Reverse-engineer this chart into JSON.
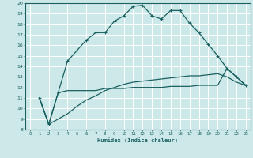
{
  "xlabel": "Humidex (Indice chaleur)",
  "xlim": [
    -0.5,
    23.5
  ],
  "ylim": [
    8,
    20
  ],
  "xticks": [
    0,
    1,
    2,
    3,
    4,
    5,
    6,
    7,
    8,
    9,
    10,
    11,
    12,
    13,
    14,
    15,
    16,
    17,
    18,
    19,
    20,
    21,
    22,
    23
  ],
  "yticks": [
    8,
    9,
    10,
    11,
    12,
    13,
    14,
    15,
    16,
    17,
    18,
    19,
    20
  ],
  "background_color": "#cce8e8",
  "grid_color": "#ffffff",
  "line_color": "#1a6060",
  "lines": [
    {
      "x": [
        1,
        2,
        3,
        4,
        5,
        6,
        7,
        8,
        9,
        10,
        11,
        12,
        13,
        14,
        15,
        16,
        17,
        18,
        19,
        20,
        21,
        22,
        23
      ],
      "y": [
        11.0,
        8.5,
        11.5,
        14.5,
        15.5,
        16.5,
        17.2,
        17.2,
        18.3,
        18.8,
        19.7,
        19.8,
        18.8,
        18.5,
        19.3,
        19.3,
        18.1,
        17.2,
        16.1,
        15.0,
        13.8,
        13.0,
        12.2
      ],
      "marker": true
    },
    {
      "x": [
        1,
        2,
        3,
        4,
        5,
        6,
        7,
        8,
        9,
        10,
        11,
        12,
        13,
        14,
        15,
        16,
        17,
        18,
        19,
        20,
        21,
        22,
        23
      ],
      "y": [
        11.0,
        8.5,
        11.5,
        11.7,
        11.7,
        11.7,
        11.7,
        11.9,
        11.9,
        11.9,
        12.0,
        12.0,
        12.0,
        12.0,
        12.1,
        12.1,
        12.1,
        12.2,
        12.2,
        12.2,
        13.8,
        13.0,
        12.2
      ],
      "marker": false
    },
    {
      "x": [
        1,
        2,
        3,
        4,
        5,
        6,
        7,
        8,
        9,
        10,
        11,
        12,
        13,
        14,
        15,
        16,
        17,
        18,
        19,
        20,
        21,
        22,
        23
      ],
      "y": [
        11.0,
        8.5,
        9.0,
        9.5,
        10.2,
        10.8,
        11.2,
        11.7,
        12.0,
        12.3,
        12.5,
        12.6,
        12.7,
        12.8,
        12.9,
        13.0,
        13.1,
        13.1,
        13.2,
        13.3,
        13.0,
        12.5,
        12.2
      ],
      "marker": false
    }
  ]
}
